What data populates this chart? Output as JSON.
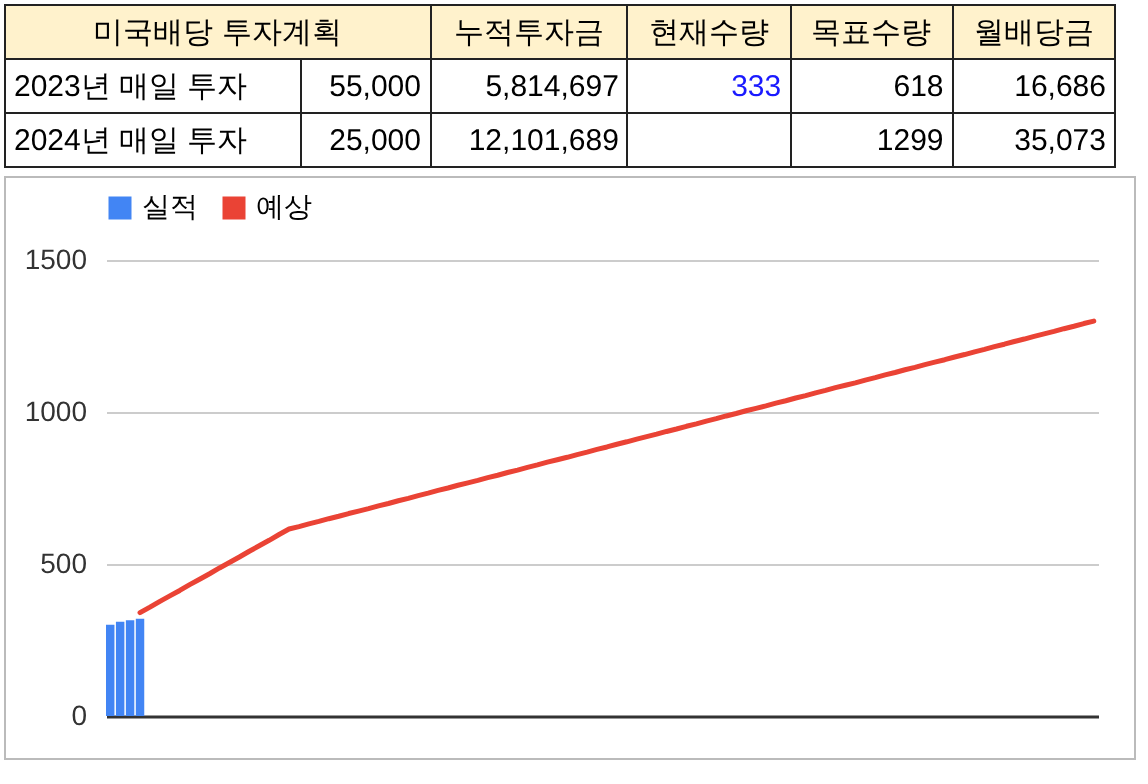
{
  "chart_data": [
    {
      "type": "other",
      "annotations": [
        "미국배당 투자계획",
        "누적투자금",
        "현재수량",
        "목표수량",
        "월배당금",
        "2023년 매일 투자",
        "55,000",
        "5,814,697",
        "333",
        "618",
        "16,686",
        "2024년 매일 투자",
        "25,000",
        "12,101,689",
        "1299",
        "35,073"
      ]
    },
    {
      "type": "bar",
      "categories": [
        null,
        null,
        null,
        null,
        null,
        null,
        null,
        null,
        null,
        null,
        null,
        null,
        null,
        null,
        null,
        null,
        null,
        null,
        null,
        null,
        null,
        null,
        null,
        null,
        null,
        null,
        null,
        null,
        null,
        null,
        null,
        null,
        null,
        null,
        null,
        null,
        null,
        null,
        null,
        null,
        null,
        null,
        null,
        null,
        null,
        null,
        null,
        null,
        null,
        null,
        null,
        null,
        null,
        null,
        null,
        null,
        null,
        null,
        null,
        null,
        null,
        null,
        null,
        null,
        null,
        null,
        null,
        null,
        null,
        null,
        null,
        null,
        null,
        null,
        null,
        null,
        null,
        null,
        null,
        null,
        null,
        null,
        null,
        null,
        null,
        null,
        null,
        null,
        null,
        null,
        null,
        null,
        null,
        null,
        null,
        null,
        null,
        null,
        null,
        null
      ],
      "series": [
        {
          "name": "실적",
          "color": "#4285f4",
          "values": [
            300,
            310,
            315,
            320,
            null,
            null,
            null,
            null,
            null,
            null,
            null,
            null,
            null,
            null,
            null,
            null,
            null,
            null,
            null,
            null,
            null,
            null,
            null,
            null,
            null,
            null,
            null,
            null,
            null,
            null,
            null,
            null,
            null,
            null,
            null,
            null,
            null,
            null,
            null,
            null,
            null,
            null,
            null,
            null,
            null,
            null,
            null,
            null,
            null,
            null,
            null,
            null,
            null,
            null,
            null,
            null,
            null,
            null,
            null,
            null,
            null,
            null,
            null,
            null,
            null,
            null,
            null,
            null,
            null,
            null,
            null,
            null,
            null,
            null,
            null,
            null,
            null,
            null,
            null,
            null,
            null,
            null,
            null,
            null,
            null,
            null,
            null,
            null,
            null,
            null,
            null,
            null,
            null,
            null,
            null,
            null,
            null,
            null,
            null,
            null
          ]
        },
        {
          "name": "예상",
          "type": "line",
          "color": "#ea4335",
          "values": [
            null,
            null,
            null,
            340,
            358,
            377,
            395,
            413,
            432,
            450,
            468,
            487,
            505,
            523,
            542,
            560,
            578,
            597,
            615,
            623,
            632,
            640,
            649,
            657,
            666,
            674,
            682,
            691,
            699,
            708,
            716,
            725,
            733,
            742,
            750,
            759,
            767,
            775,
            784,
            792,
            801,
            809,
            818,
            826,
            835,
            843,
            851,
            860,
            868,
            877,
            885,
            894,
            902,
            911,
            919,
            927,
            936,
            944,
            953,
            961,
            970,
            978,
            987,
            995,
            1004,
            1012,
            1020,
            1029,
            1037,
            1046,
            1054,
            1063,
            1071,
            1080,
            1088,
            1096,
            1105,
            1113,
            1122,
            1130,
            1139,
            1147,
            1156,
            1164,
            1172,
            1181,
            1189,
            1198,
            1206,
            1215,
            1223,
            1232,
            1240,
            1249,
            1257,
            1265,
            1274,
            1282,
            1291,
            1299
          ]
        }
      ],
      "ylim": [
        0,
        1500
      ],
      "yticks": [
        0,
        500,
        1000,
        1500
      ],
      "grid": "y",
      "legend": "top",
      "tick_labels": "y"
    }
  ]
}
